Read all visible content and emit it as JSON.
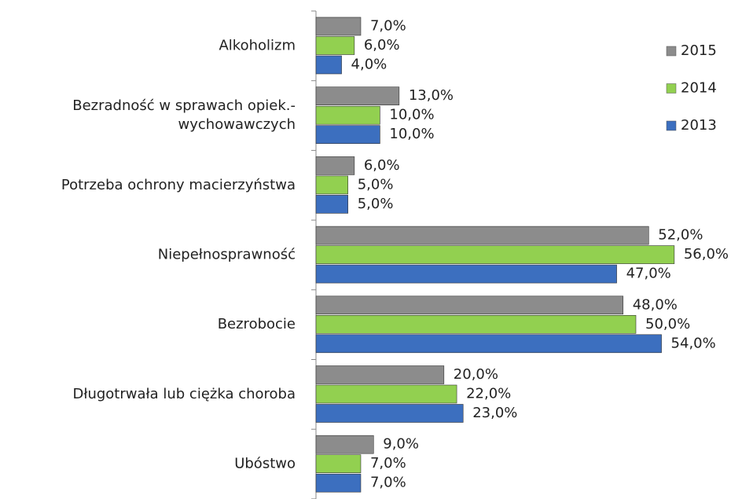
{
  "chart_data": {
    "type": "bar",
    "orientation": "horizontal",
    "categories": [
      "Alkoholizm",
      "Bezradność w sprawach opiek.-\nwychowawczych",
      "Potrzeba ochrony macierzyństwa",
      "Niepełnosprawność",
      "Bezrobocie",
      "Długotrwała lub ciężka choroba",
      "Ubóstwo"
    ],
    "series": [
      {
        "name": "2015",
        "color": "#8c8c8c",
        "values": [
          7,
          13,
          6,
          52,
          48,
          20,
          9
        ],
        "value_labels": [
          "7,0%",
          "13,0%",
          "6,0%",
          "52,0%",
          "48,0%",
          "20,0%",
          "9,0%"
        ]
      },
      {
        "name": "2014",
        "color": "#92d050",
        "values": [
          6,
          10,
          5,
          56,
          50,
          22,
          7
        ],
        "value_labels": [
          "6,0%",
          "10,0%",
          "5,0%",
          "56,0%",
          "50,0%",
          "22,0%",
          "7,0%"
        ]
      },
      {
        "name": "2013",
        "color": "#3c6fbf",
        "values": [
          4,
          10,
          5,
          47,
          54,
          23,
          7
        ],
        "value_labels": [
          "4,0%",
          "10,0%",
          "5,0%",
          "47,0%",
          "54,0%",
          "23,0%",
          "7,0%"
        ]
      }
    ],
    "legend": "right"
  }
}
